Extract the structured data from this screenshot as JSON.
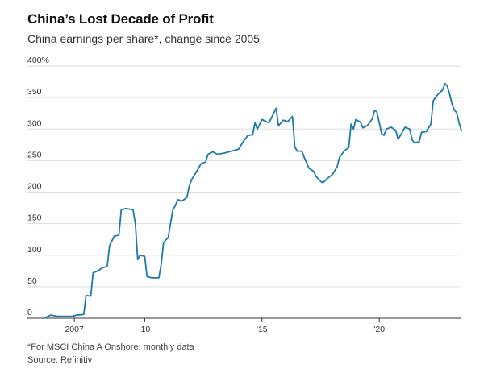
{
  "title": "China’s Lost Decade of Profit",
  "subtitle": "China earnings per share*, change since 2005",
  "footnote": "*For MSCI China A Onshore; monthly data",
  "source": "Source: Refinitiv",
  "colors": {
    "line": "#1b7aa6",
    "grid": "#dddddd",
    "axis": "#333333"
  },
  "chart_data": {
    "type": "line",
    "title": "China’s Lost Decade of Profit",
    "subtitle": "China earnings per share*, change since 2005",
    "xlabel": "",
    "ylabel": "",
    "xlim": [
      2005.0,
      2023.5
    ],
    "ylim": [
      0,
      400
    ],
    "grid": true,
    "yticks": [
      0,
      50,
      100,
      150,
      200,
      250,
      300,
      350,
      400
    ],
    "ytick_labels": [
      "0",
      "50",
      "100",
      "150",
      "200",
      "250",
      "300",
      "350",
      "400%"
    ],
    "xticks": [
      2007,
      2010,
      2015,
      2020
    ],
    "xtick_labels": [
      "2007",
      "'10",
      "'15",
      "'20"
    ],
    "series": [
      {
        "values": [
          [
            2005.7,
            0
          ],
          [
            2006.0,
            5
          ],
          [
            2006.3,
            3
          ],
          [
            2006.6,
            3
          ],
          [
            2006.9,
            3
          ],
          [
            2007.1,
            5
          ],
          [
            2007.4,
            6
          ],
          [
            2007.5,
            36
          ],
          [
            2007.7,
            35
          ],
          [
            2007.8,
            72
          ],
          [
            2008.0,
            75
          ],
          [
            2008.2,
            80
          ],
          [
            2008.4,
            82
          ],
          [
            2008.5,
            115
          ],
          [
            2008.7,
            130
          ],
          [
            2008.9,
            132
          ],
          [
            2009.0,
            172
          ],
          [
            2009.2,
            174
          ],
          [
            2009.5,
            172
          ],
          [
            2009.6,
            150
          ],
          [
            2009.7,
            93
          ],
          [
            2009.8,
            100
          ],
          [
            2010.0,
            98
          ],
          [
            2010.1,
            66
          ],
          [
            2010.3,
            64
          ],
          [
            2010.6,
            64
          ],
          [
            2010.7,
            85
          ],
          [
            2010.8,
            120
          ],
          [
            2011.0,
            128
          ],
          [
            2011.2,
            172
          ],
          [
            2011.3,
            178
          ],
          [
            2011.4,
            188
          ],
          [
            2011.6,
            186
          ],
          [
            2011.8,
            192
          ],
          [
            2011.9,
            210
          ],
          [
            2012.0,
            220
          ],
          [
            2012.2,
            232
          ],
          [
            2012.4,
            245
          ],
          [
            2012.6,
            248
          ],
          [
            2012.7,
            260
          ],
          [
            2012.9,
            264
          ],
          [
            2013.1,
            260
          ],
          [
            2013.4,
            262
          ],
          [
            2013.7,
            265
          ],
          [
            2014.0,
            268
          ],
          [
            2014.2,
            280
          ],
          [
            2014.4,
            290
          ],
          [
            2014.6,
            291
          ],
          [
            2014.7,
            310
          ],
          [
            2014.8,
            300
          ],
          [
            2015.0,
            315
          ],
          [
            2015.3,
            310
          ],
          [
            2015.6,
            333
          ],
          [
            2015.7,
            305
          ],
          [
            2015.9,
            314
          ],
          [
            2016.1,
            312
          ],
          [
            2016.3,
            320
          ],
          [
            2016.4,
            272
          ],
          [
            2016.5,
            265
          ],
          [
            2016.7,
            265
          ],
          [
            2016.8,
            255
          ],
          [
            2017.0,
            238
          ],
          [
            2017.2,
            233
          ],
          [
            2017.3,
            225
          ],
          [
            2017.5,
            217
          ],
          [
            2017.6,
            215
          ],
          [
            2017.8,
            222
          ],
          [
            2018.0,
            228
          ],
          [
            2018.2,
            240
          ],
          [
            2018.3,
            255
          ],
          [
            2018.5,
            265
          ],
          [
            2018.7,
            271
          ],
          [
            2018.8,
            308
          ],
          [
            2018.9,
            300
          ],
          [
            2019.0,
            315
          ],
          [
            2019.2,
            311
          ],
          [
            2019.3,
            302
          ],
          [
            2019.5,
            306
          ],
          [
            2019.7,
            316
          ],
          [
            2019.8,
            330
          ],
          [
            2019.9,
            327
          ],
          [
            2020.1,
            293
          ],
          [
            2020.2,
            290
          ],
          [
            2020.3,
            300
          ],
          [
            2020.5,
            303
          ],
          [
            2020.7,
            298
          ],
          [
            2020.8,
            284
          ],
          [
            2020.9,
            290
          ],
          [
            2021.1,
            303
          ],
          [
            2021.3,
            300
          ],
          [
            2021.4,
            283
          ],
          [
            2021.5,
            278
          ],
          [
            2021.7,
            280
          ],
          [
            2021.8,
            295
          ],
          [
            2022.0,
            296
          ],
          [
            2022.2,
            308
          ],
          [
            2022.3,
            345
          ],
          [
            2022.5,
            355
          ],
          [
            2022.7,
            362
          ],
          [
            2022.8,
            372
          ],
          [
            2022.9,
            368
          ],
          [
            2023.0,
            355
          ],
          [
            2023.1,
            340
          ],
          [
            2023.2,
            330
          ],
          [
            2023.3,
            326
          ],
          [
            2023.4,
            310
          ],
          [
            2023.5,
            298
          ]
        ]
      }
    ]
  }
}
